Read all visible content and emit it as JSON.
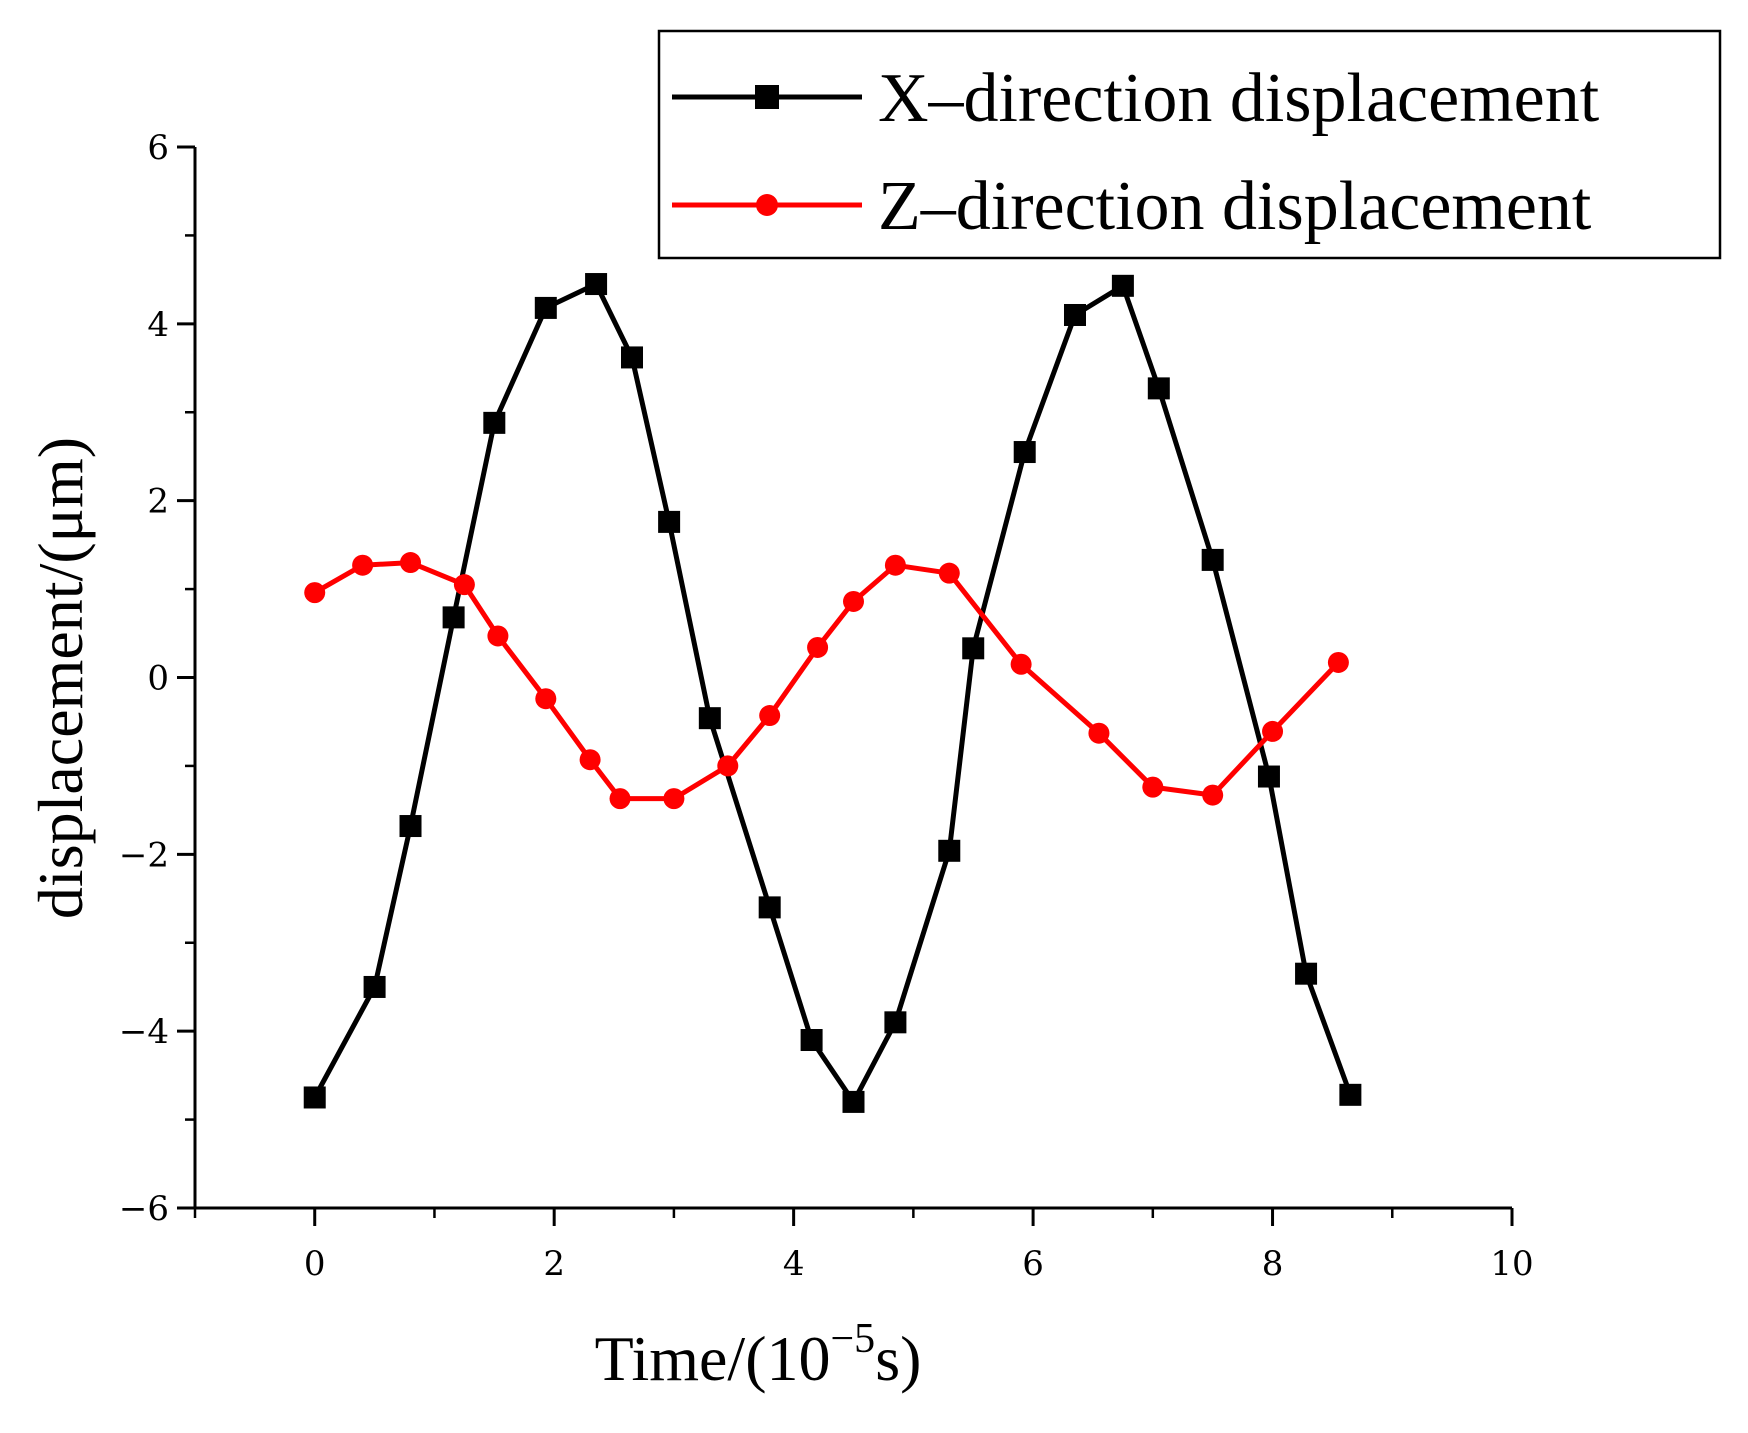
{
  "chart_data": {
    "type": "line",
    "xlabel": "Time/(10",
    "xlabel_exponent": "−5",
    "xlabel_suffix": "s)",
    "ylabel": "displacement/(μm)",
    "xlim": [
      -1,
      10
    ],
    "ylim": [
      -6,
      6
    ],
    "x_ticks": [
      0,
      2,
      4,
      6,
      8,
      10
    ],
    "x_tick_labels": [
      "0",
      "2",
      "4",
      "6",
      "8",
      "10"
    ],
    "y_ticks": [
      -6,
      -4,
      -2,
      0,
      2,
      4,
      6
    ],
    "y_tick_labels": [
      "−6",
      "−4",
      "−2",
      "0",
      "2",
      "4",
      "6"
    ],
    "legend_position": "top-right",
    "series": [
      {
        "name": "X–direction displacement",
        "color": "#000000",
        "marker": "square",
        "x": [
          0,
          0.5,
          0.8,
          1.16,
          1.5,
          1.93,
          2.35,
          2.65,
          2.96,
          3.3,
          3.8,
          4.15,
          4.5,
          4.85,
          5.3,
          5.5,
          5.93,
          6.35,
          6.75,
          7.05,
          7.5,
          7.97,
          8.28,
          8.65
        ],
        "y": [
          -4.75,
          -3.5,
          -1.68,
          0.68,
          2.88,
          4.18,
          4.45,
          3.62,
          1.76,
          -0.46,
          -2.6,
          -4.1,
          -4.8,
          -3.9,
          -1.96,
          0.33,
          2.55,
          4.1,
          4.43,
          3.27,
          1.33,
          -1.12,
          -3.35,
          -4.72
        ]
      },
      {
        "name": "Z–direction displacement",
        "color": "#ff0000",
        "marker": "circle",
        "x": [
          0,
          0.4,
          0.8,
          1.25,
          1.53,
          1.93,
          2.3,
          2.55,
          3.0,
          3.45,
          3.8,
          4.2,
          4.5,
          4.85,
          5.3,
          5.9,
          6.55,
          7.0,
          7.5,
          8.0,
          8.55
        ],
        "y": [
          0.96,
          1.27,
          1.3,
          1.05,
          0.47,
          -0.24,
          -0.93,
          -1.37,
          -1.37,
          -1.0,
          -0.43,
          0.34,
          0.86,
          1.27,
          1.18,
          0.15,
          -0.63,
          -1.24,
          -1.33,
          -0.61,
          0.17
        ]
      }
    ]
  }
}
